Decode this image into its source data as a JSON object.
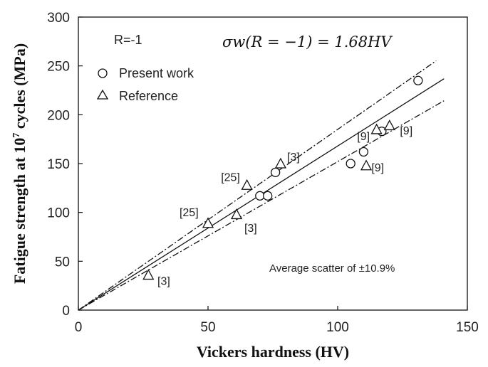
{
  "chart_data": {
    "type": "scatter",
    "xlabel": "Vickers hardness (HV)",
    "ylabel_parts": {
      "before": "Fatigue strength at 10",
      "sup": "7",
      "after": " cycles (MPa)"
    },
    "xlim": [
      0,
      150
    ],
    "ylim": [
      0,
      300
    ],
    "xticks": [
      "0",
      "50",
      "100",
      "150"
    ],
    "yticks": [
      "0",
      "50",
      "100",
      "150",
      "200",
      "250",
      "300"
    ],
    "stress_ratio_label": "R=-1",
    "formula": "σw(R = −1) = 1.68HV",
    "scatter_note": "Average scatter of ±10.9%",
    "legend": {
      "position": "upper-left",
      "entries": [
        "Present work",
        "Reference"
      ]
    },
    "lines": [
      {
        "style": "solid",
        "slope": 1.68,
        "x": [
          0,
          141
        ]
      },
      {
        "style": "dash-dot",
        "slope": 1.85,
        "x": [
          0,
          138
        ]
      },
      {
        "style": "dash-dot",
        "slope": 1.52,
        "x": [
          0,
          141
        ]
      }
    ],
    "series": [
      {
        "name": "Present work",
        "marker": "circle",
        "points": [
          [
            70,
            117
          ],
          [
            73,
            117
          ],
          [
            76,
            141
          ],
          [
            105,
            150
          ],
          [
            110,
            162
          ],
          [
            117,
            183
          ],
          [
            131,
            235
          ]
        ]
      },
      {
        "name": "Reference",
        "marker": "triangle",
        "points": [
          [
            27,
            36
          ],
          [
            50,
            89
          ],
          [
            61,
            98
          ],
          [
            65,
            128
          ],
          [
            78,
            150
          ],
          [
            111,
            148
          ],
          [
            115,
            185
          ],
          [
            120,
            189
          ]
        ]
      }
    ],
    "point_labels": [
      {
        "text": "[3]",
        "x": 30.5,
        "y": 26
      },
      {
        "text": "[25]",
        "x": 39,
        "y": 96
      },
      {
        "text": "[3]",
        "x": 64,
        "y": 80
      },
      {
        "text": "[25]",
        "x": 55,
        "y": 132
      },
      {
        "text": "[3]",
        "x": 80.5,
        "y": 153
      },
      {
        "text": "[9]",
        "x": 113,
        "y": 142
      },
      {
        "text": "[9]",
        "x": 107.5,
        "y": 174
      },
      {
        "text": "[9]",
        "x": 124,
        "y": 180
      }
    ]
  }
}
